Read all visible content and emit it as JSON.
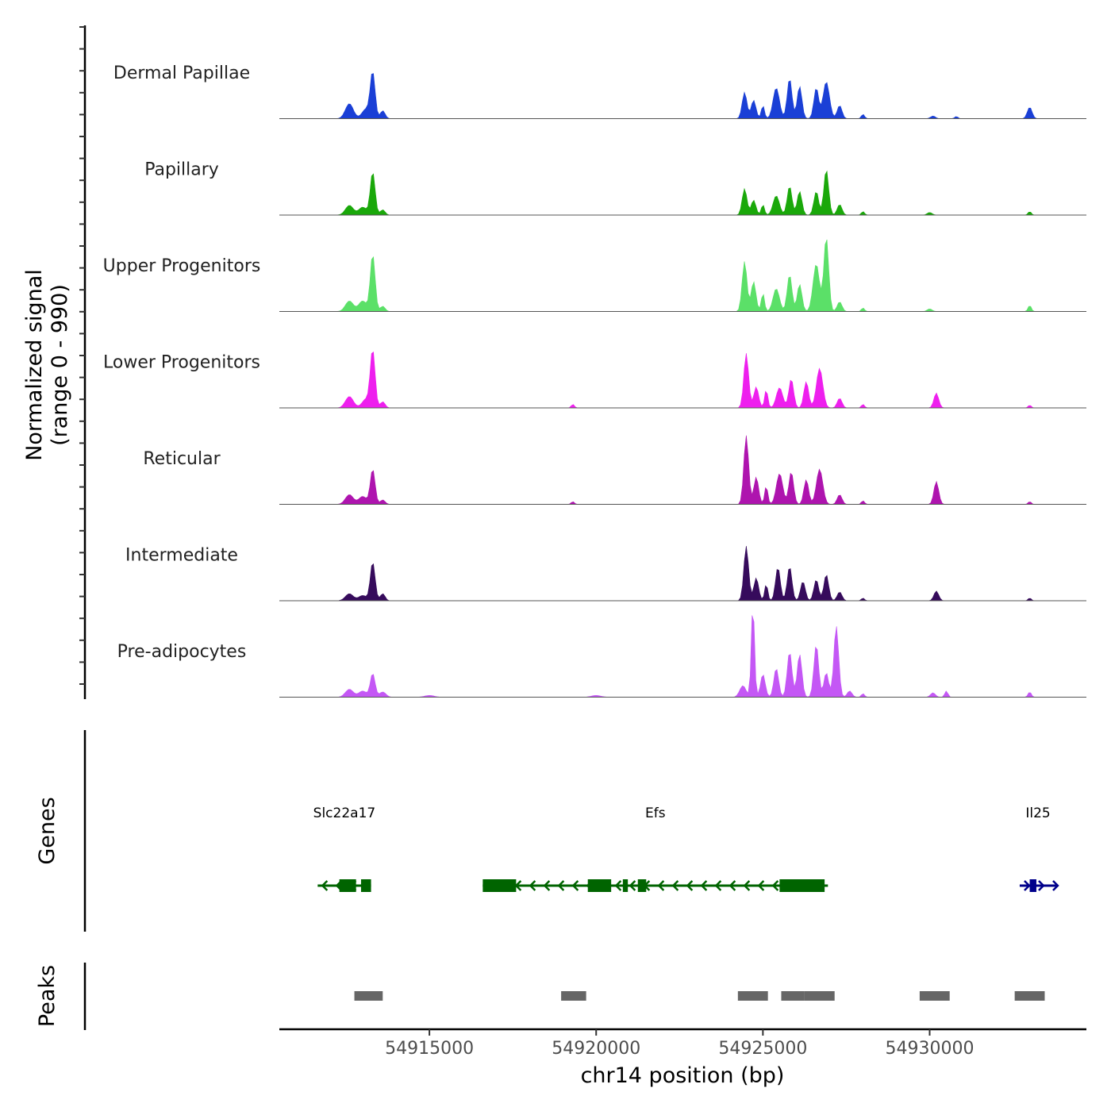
{
  "chart_data": {
    "type": "area",
    "title": "",
    "xlabel": "chr14 position (bp)",
    "ylabel_line1": "Normalized signal",
    "ylabel_line2": "(range 0 - 990)",
    "xlim": [
      54910500,
      54934700
    ],
    "x_ticks": [
      54915000,
      54920000,
      54925000,
      54930000
    ],
    "x_tick_labels": [
      "54915000",
      "54920000",
      "54925000",
      "54930000"
    ],
    "ylim": [
      0,
      990
    ],
    "tracks": [
      {
        "name": "Dermal Papillae",
        "color": "#1a3fd6",
        "peaks": [
          [
            54912600,
            5,
            170
          ],
          [
            54913100,
            5,
            110
          ],
          [
            54913300,
            3,
            520
          ],
          [
            54913600,
            3,
            90
          ],
          [
            54924450,
            3,
            300
          ],
          [
            54924720,
            3,
            210
          ],
          [
            54925000,
            2,
            150
          ],
          [
            54925400,
            4,
            350
          ],
          [
            54925800,
            3,
            460
          ],
          [
            54926100,
            3,
            370
          ],
          [
            54926600,
            3,
            350
          ],
          [
            54926900,
            4,
            420
          ],
          [
            54927300,
            3,
            150
          ],
          [
            54928000,
            2,
            50
          ],
          [
            54930100,
            3,
            30
          ],
          [
            54930800,
            2,
            25
          ],
          [
            54933000,
            3,
            130
          ]
        ]
      },
      {
        "name": "Papillary",
        "color": "#1aa80a",
        "peaks": [
          [
            54912600,
            5,
            110
          ],
          [
            54913000,
            5,
            90
          ],
          [
            54913300,
            3,
            490
          ],
          [
            54913600,
            3,
            60
          ],
          [
            54924450,
            3,
            300
          ],
          [
            54924720,
            3,
            170
          ],
          [
            54925000,
            2,
            120
          ],
          [
            54925400,
            4,
            220
          ],
          [
            54925800,
            3,
            330
          ],
          [
            54926100,
            3,
            270
          ],
          [
            54926600,
            3,
            270
          ],
          [
            54926900,
            3,
            520
          ],
          [
            54927300,
            3,
            120
          ],
          [
            54928000,
            2,
            40
          ],
          [
            54930000,
            3,
            30
          ],
          [
            54933000,
            2,
            40
          ]
        ]
      },
      {
        "name": "Upper Progenitors",
        "color": "#5be068",
        "peaks": [
          [
            54912600,
            5,
            120
          ],
          [
            54913000,
            5,
            120
          ],
          [
            54913300,
            3,
            650
          ],
          [
            54913600,
            3,
            60
          ],
          [
            54924450,
            3,
            570
          ],
          [
            54924720,
            3,
            340
          ],
          [
            54925000,
            2,
            210
          ],
          [
            54925400,
            4,
            260
          ],
          [
            54925800,
            3,
            420
          ],
          [
            54926100,
            3,
            310
          ],
          [
            54926600,
            4,
            540
          ],
          [
            54926900,
            3,
            850
          ],
          [
            54927300,
            3,
            110
          ],
          [
            54928000,
            2,
            40
          ],
          [
            54930000,
            3,
            30
          ],
          [
            54933000,
            2,
            70
          ]
        ]
      },
      {
        "name": "Lower Progenitors",
        "color": "#ee1fee",
        "peaks": [
          [
            54912600,
            5,
            130
          ],
          [
            54913100,
            5,
            100
          ],
          [
            54913300,
            3,
            650
          ],
          [
            54913600,
            3,
            70
          ],
          [
            54919300,
            2,
            40
          ],
          [
            54924500,
            3,
            620
          ],
          [
            54924800,
            3,
            240
          ],
          [
            54925100,
            2,
            210
          ],
          [
            54925500,
            4,
            230
          ],
          [
            54925850,
            3,
            330
          ],
          [
            54926300,
            3,
            300
          ],
          [
            54926700,
            4,
            450
          ],
          [
            54927300,
            3,
            110
          ],
          [
            54928000,
            2,
            40
          ],
          [
            54930200,
            3,
            170
          ],
          [
            54933000,
            2,
            30
          ]
        ]
      },
      {
        "name": "Reticular",
        "color": "#ae14ae",
        "peaks": [
          [
            54912600,
            5,
            110
          ],
          [
            54913000,
            5,
            90
          ],
          [
            54913300,
            3,
            400
          ],
          [
            54913600,
            3,
            50
          ],
          [
            54919300,
            2,
            30
          ],
          [
            54924500,
            3,
            780
          ],
          [
            54924800,
            3,
            310
          ],
          [
            54925100,
            2,
            210
          ],
          [
            54925500,
            4,
            350
          ],
          [
            54925850,
            3,
            370
          ],
          [
            54926300,
            3,
            280
          ],
          [
            54926700,
            4,
            400
          ],
          [
            54927300,
            3,
            110
          ],
          [
            54928000,
            2,
            40
          ],
          [
            54930200,
            3,
            260
          ],
          [
            54933000,
            2,
            30
          ]
        ]
      },
      {
        "name": "Intermediate",
        "color": "#360b5c",
        "peaks": [
          [
            54912600,
            5,
            80
          ],
          [
            54913000,
            5,
            60
          ],
          [
            54913300,
            3,
            440
          ],
          [
            54913600,
            3,
            80
          ],
          [
            54924500,
            3,
            620
          ],
          [
            54924800,
            3,
            260
          ],
          [
            54925100,
            2,
            190
          ],
          [
            54925450,
            3,
            380
          ],
          [
            54925800,
            3,
            390
          ],
          [
            54926200,
            3,
            220
          ],
          [
            54926600,
            3,
            240
          ],
          [
            54926900,
            3,
            300
          ],
          [
            54927300,
            3,
            100
          ],
          [
            54928000,
            2,
            30
          ],
          [
            54930200,
            3,
            110
          ],
          [
            54933000,
            2,
            30
          ]
        ]
      },
      {
        "name": "Pre-adipocytes",
        "color": "#c457f5",
        "peaks": [
          [
            54912600,
            5,
            90
          ],
          [
            54913000,
            5,
            70
          ],
          [
            54913300,
            3,
            270
          ],
          [
            54913600,
            4,
            60
          ],
          [
            54915000,
            6,
            20
          ],
          [
            54920000,
            6,
            20
          ],
          [
            54924400,
            4,
            130
          ],
          [
            54924700,
            2,
            1070
          ],
          [
            54925000,
            3,
            260
          ],
          [
            54925400,
            3,
            330
          ],
          [
            54925800,
            3,
            520
          ],
          [
            54926100,
            3,
            490
          ],
          [
            54926600,
            3,
            600
          ],
          [
            54926900,
            3,
            280
          ],
          [
            54927200,
            3,
            810
          ],
          [
            54927600,
            3,
            70
          ],
          [
            54928000,
            2,
            40
          ],
          [
            54930100,
            3,
            50
          ],
          [
            54930500,
            2,
            70
          ],
          [
            54933000,
            2,
            60
          ]
        ]
      }
    ],
    "genes_panel_label": "Genes",
    "genes": [
      {
        "name": "Slc22a17",
        "color": "#006400",
        "start": 54911650,
        "end": 54913250,
        "strand": "-",
        "exons": [
          [
            54912300,
            54912800
          ],
          [
            54912950,
            54913250
          ]
        ]
      },
      {
        "name": "Efs",
        "color": "#006400",
        "start": 54916600,
        "end": 54926950,
        "strand": "-",
        "exons": [
          [
            54916600,
            54917600
          ],
          [
            54919750,
            54920450
          ],
          [
            54920800,
            54920950
          ],
          [
            54921250,
            54921500
          ],
          [
            54925500,
            54926850
          ]
        ]
      },
      {
        "name": "Il25",
        "color": "#00008b",
        "start": 54932700,
        "end": 54933800,
        "strand": "+",
        "exons": [
          [
            54933000,
            54933200
          ]
        ]
      }
    ],
    "peaks_panel_label": "Peaks",
    "peak_regions": [
      [
        54912750,
        54913600
      ],
      [
        54918950,
        54919700
      ],
      [
        54924250,
        54925150
      ],
      [
        54925550,
        54926250
      ],
      [
        54926250,
        54927150
      ],
      [
        54929700,
        54930600
      ],
      [
        54932550,
        54933450
      ]
    ]
  }
}
